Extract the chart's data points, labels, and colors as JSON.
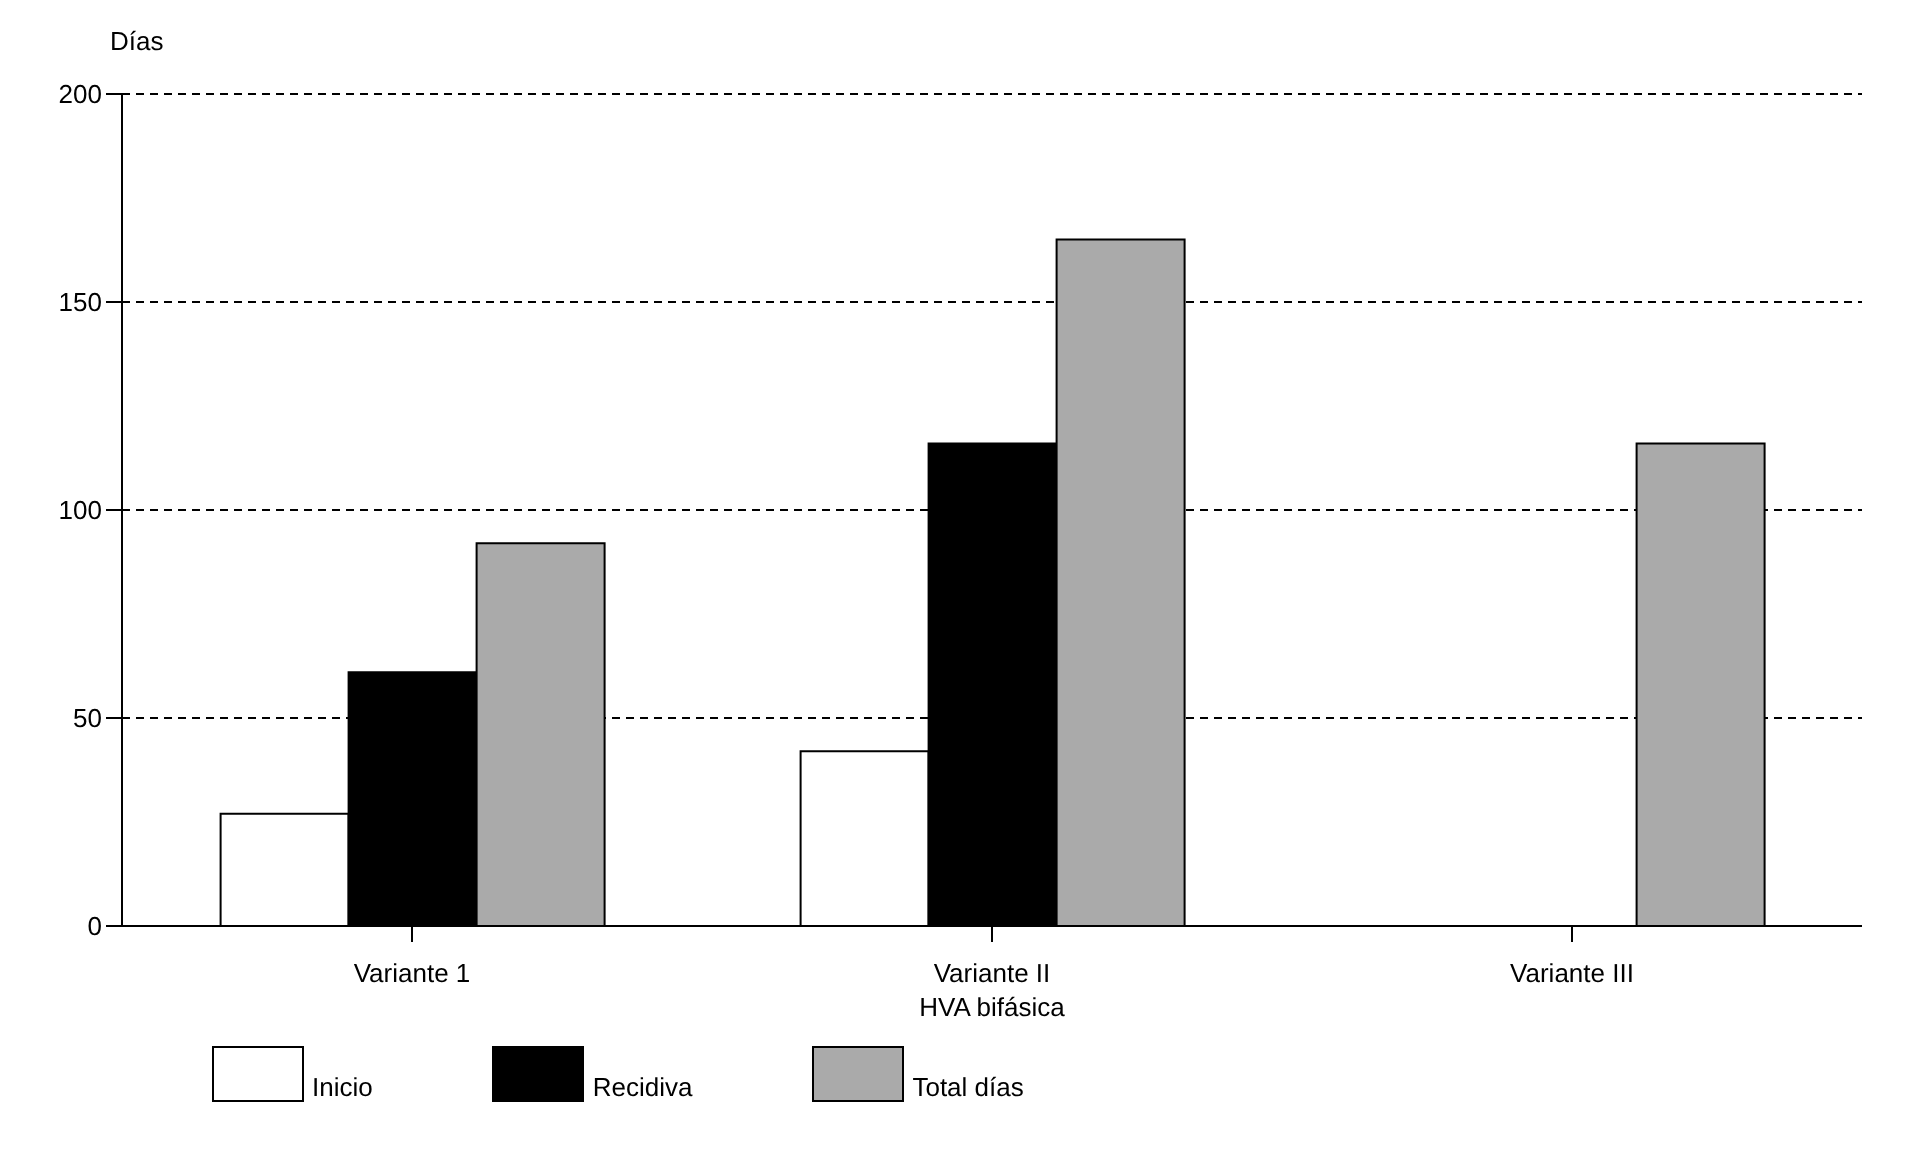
{
  "chart_data": {
    "type": "bar",
    "ylabel": "Días",
    "categories": [
      "Variante 1",
      "Variante II\nHVA bifásica",
      "Variante III"
    ],
    "series": [
      {
        "name": "Inicio",
        "color": "#ffffff",
        "values": [
          27,
          42,
          0
        ]
      },
      {
        "name": "Recidiva",
        "color": "#000000",
        "values": [
          61,
          116,
          0
        ]
      },
      {
        "name": "Total días",
        "color": "#aaaaaa",
        "values": [
          92,
          165,
          116
        ]
      }
    ],
    "ylim": [
      0,
      200
    ],
    "yticks": [
      0,
      50,
      100,
      150,
      200
    ],
    "grid": "y",
    "legend": "bottom"
  }
}
